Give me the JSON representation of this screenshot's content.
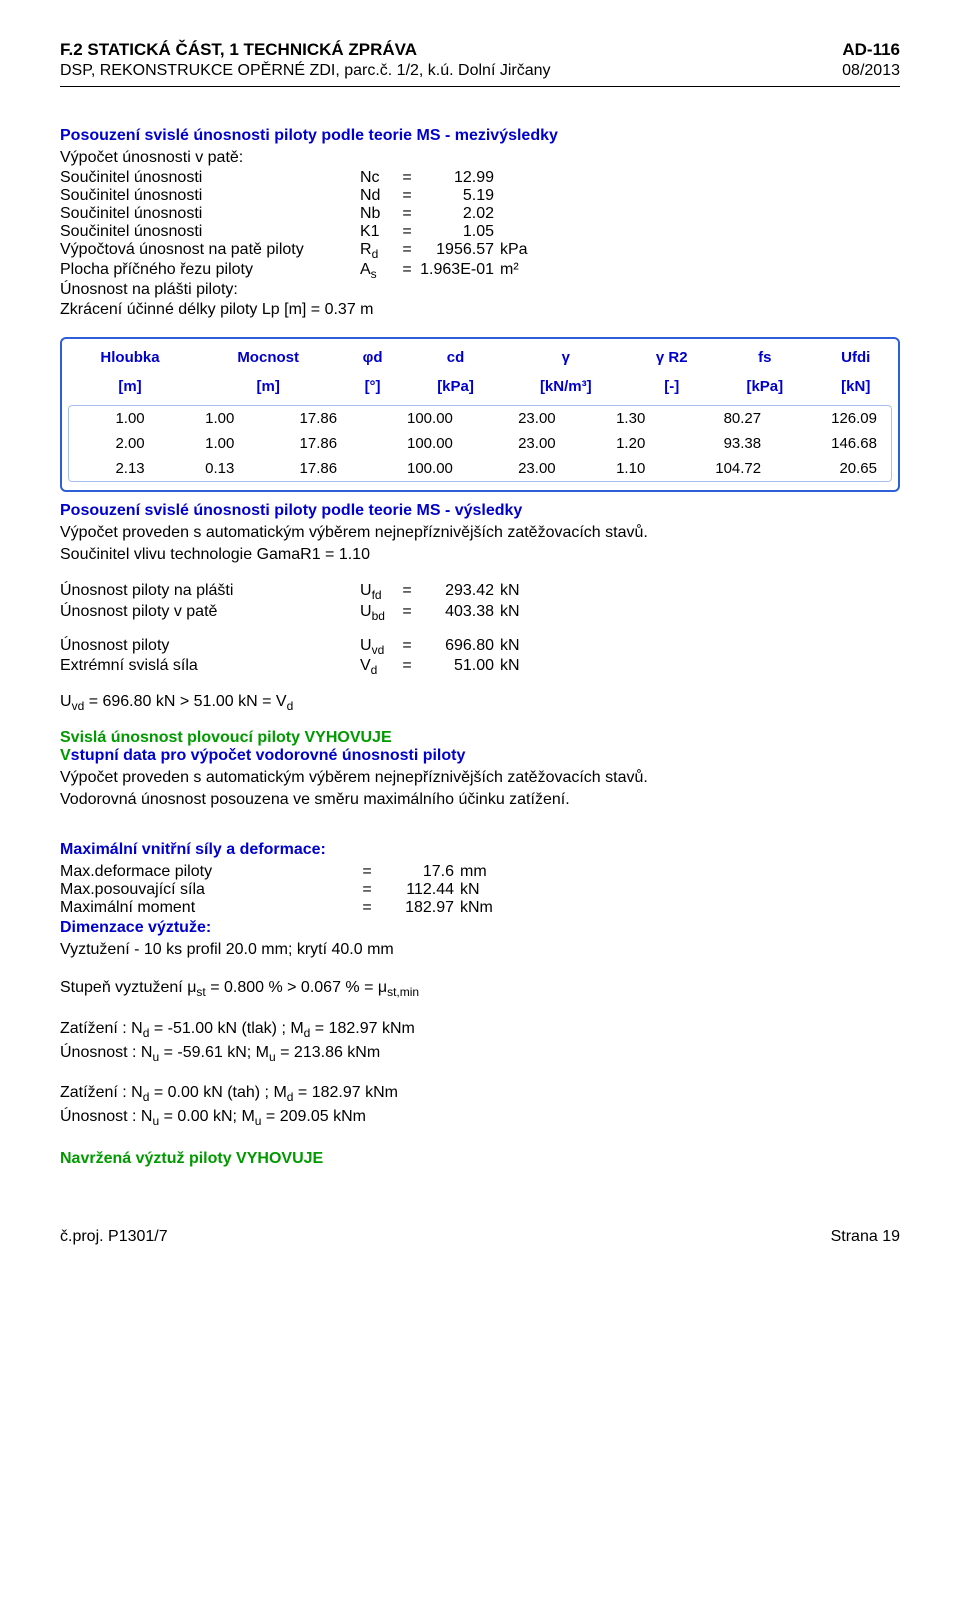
{
  "header": {
    "title_left": "F.2 STATICKÁ ČÁST,  1 TECHNICKÁ ZPRÁVA",
    "title_right": "AD-116",
    "sub_left": "DSP, REKONSTRUKCE OPĚRNÉ ZDI, parc.č. 1/2, k.ú. Dolní Jirčany",
    "sub_right": "08/2013"
  },
  "section1": {
    "title": "Posouzení svislé únosnosti piloty podle teorie MS - mezivýsledky",
    "line1": "Výpočet únosnosti v patě:",
    "rows": [
      {
        "label": "Součinitel únosnosti",
        "sym": "Nc",
        "val": "12.99",
        "unit": ""
      },
      {
        "label": "Součinitel únosnosti",
        "sym": "Nd",
        "val": "5.19",
        "unit": ""
      },
      {
        "label": "Součinitel únosnosti",
        "sym": "Nb",
        "val": "2.02",
        "unit": ""
      },
      {
        "label": "Součinitel únosnosti",
        "sym": "K1",
        "val": "1.05",
        "unit": ""
      },
      {
        "label": "Výpočtová únosnost na patě piloty",
        "sym": "R",
        "sub": "d",
        "val": "1956.57",
        "unit": "kPa"
      },
      {
        "label": "Plocha příčného řezu piloty",
        "sym": "A",
        "sub": "s",
        "val": "1.963E-01",
        "unit": "m²"
      }
    ],
    "after1": "Únosnost na plášti piloty:",
    "after2": "Zkrácení účinné délky piloty Lp [m] = 0.37 m"
  },
  "table": {
    "type": "table",
    "header_color": "#0000cc",
    "border_color": "#2d5fd6",
    "columns": [
      {
        "h1": "Hloubka",
        "h2": "[m]"
      },
      {
        "h1": "Mocnost",
        "h2": "[m]"
      },
      {
        "h1": "φd",
        "h2": "[°]"
      },
      {
        "h1": "cd",
        "h2": "[kPa]"
      },
      {
        "h1": "γ",
        "h2": "[kN/m³]"
      },
      {
        "h1": "γ R2",
        "h2": "[-]"
      },
      {
        "h1": "fs",
        "h2": "[kPa]"
      },
      {
        "h1": "Ufdi",
        "h2": "[kN]"
      }
    ],
    "rows": [
      [
        "1.00",
        "1.00",
        "17.86",
        "100.00",
        "23.00",
        "1.30",
        "80.27",
        "126.09"
      ],
      [
        "2.00",
        "1.00",
        "17.86",
        "100.00",
        "23.00",
        "1.20",
        "93.38",
        "146.68"
      ],
      [
        "2.13",
        "0.13",
        "17.86",
        "100.00",
        "23.00",
        "1.10",
        "104.72",
        "20.65"
      ]
    ]
  },
  "section2": {
    "title": "Posouzení svislé únosnosti piloty podle teorie MS - výsledky",
    "p1": "Výpočet proveden s automatickým výběrem nejnepříznivějších zatěžovacích stavů.",
    "p2": "Součinitel vlivu technologie GamaR1 = 1.10",
    "rows_a": [
      {
        "label": "Únosnost piloty na plášti",
        "sym": "U",
        "sub": "fd",
        "val": "293.42",
        "unit": "kN"
      },
      {
        "label": "Únosnost piloty v patě",
        "sym": "U",
        "sub": "bd",
        "val": "403.38",
        "unit": "kN"
      }
    ],
    "rows_b": [
      {
        "label": "Únosnost piloty",
        "sym": "U",
        "sub": "vd",
        "val": "696.80",
        "unit": "kN"
      },
      {
        "label": "Extrémní svislá síla",
        "sym": "V",
        "sub": "d",
        "val": "51.00",
        "unit": "kN"
      }
    ],
    "eq": {
      "lhs_sym": "U",
      "lhs_sub": "vd",
      "lhs_val": "696.80 kN",
      "op": ">",
      "rhs_val": "51.00 kN",
      "rhs_sym": "V",
      "rhs_sub": "d"
    }
  },
  "section3": {
    "green_title": "Svislá únosnost plovoucí piloty VYHOVUJE",
    "blue_title": "stupní data pro výpočet vodorovné únosnosti piloty",
    "prefix_v": "V",
    "p1": "Výpočet proveden s automatickým výběrem nejnepříznivějších zatěžovacích stavů.",
    "p2": "Vodorovná únosnost posouzena ve směru maximálního účinku zatížení.",
    "sub_title1": "Maximální vnitřní síly a deformace:",
    "rows": [
      {
        "label": "Max.deformace piloty",
        "val": "17.6",
        "unit": "mm"
      },
      {
        "label": "Max.posouvající síla",
        "val": "112.44",
        "unit": "kN"
      },
      {
        "label": "Maximální moment",
        "val": "182.97",
        "unit": "kNm"
      }
    ],
    "sub_title2": "Dimenzace výztuže:",
    "p3": "Vyztužení - 10 ks profil 20.0 mm; krytí 40.0 mm",
    "p4_pre": "Stupeň vyztužení μ",
    "p4_sub1": "st",
    "p4_mid": " = 0.800 % > 0.067 % = μ",
    "p4_sub2": "st,min",
    "load1a": "Zatížení : N",
    "load1a_sub": "d",
    "load1a_rest": " = -51.00 kN (tlak) ; M",
    "load1a_sub2": "d",
    "load1a_end": " = 182.97 kNm",
    "load1b": "Únosnost : N",
    "load1b_sub": "u",
    "load1b_rest": " = -59.61 kN; M",
    "load1b_sub2": "u",
    "load1b_end": " = 213.86 kNm",
    "load2a": "Zatížení : N",
    "load2a_sub": "d",
    "load2a_rest": " = 0.00 kN (tah) ; M",
    "load2a_sub2": "d",
    "load2a_end": " = 182.97 kNm",
    "load2b": "Únosnost : N",
    "load2b_sub": "u",
    "load2b_rest": " = 0.00 kN; M",
    "load2b_sub2": "u",
    "load2b_end": " = 209.05 kNm",
    "green_end": "Navržená výztuž piloty VYHOVUJE"
  },
  "footer": {
    "left": "č.proj. P1301/7",
    "right": "Strana 19"
  }
}
